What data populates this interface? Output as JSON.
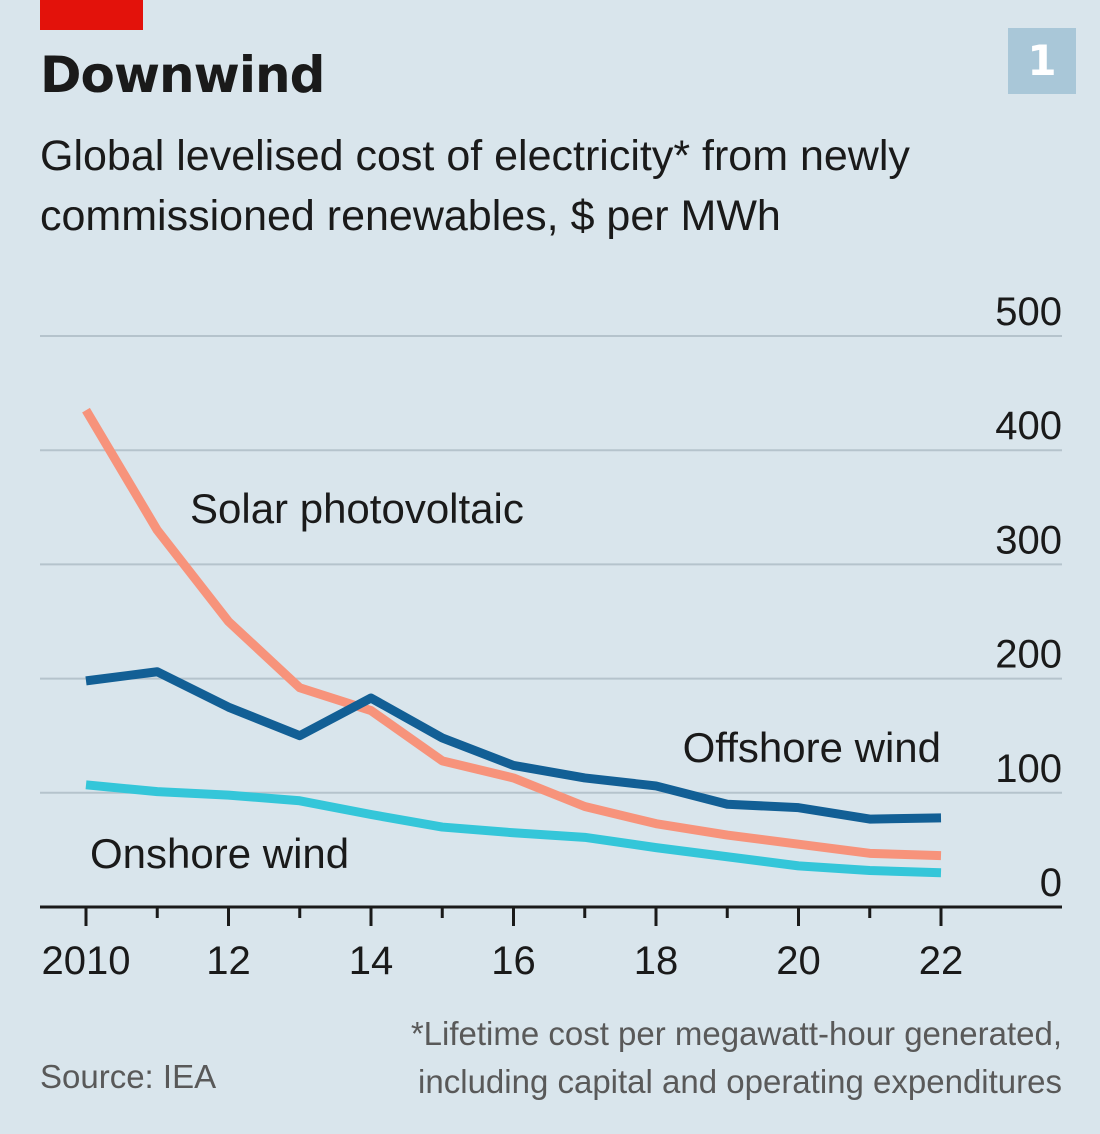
{
  "header": {
    "title": "Downwind",
    "subtitle": "Global levelised cost of electricity* from newly commissioned renewables, $ per MWh",
    "chart_number": "1"
  },
  "footer": {
    "footnote": "*Lifetime cost per megawatt-hour generated, including capital and operating expenditures",
    "source": "Source: IEA"
  },
  "colors": {
    "brand_red": "#e3120b",
    "background": "#d9e5ec",
    "solar": "#f7937b",
    "offshore": "#125f95",
    "onshore": "#34c6d9",
    "gridline": "#b5c3cc",
    "axis": "#1a1a1a",
    "badge": "#a9c7d8"
  },
  "chart_data": {
    "type": "line",
    "title": "Downwind",
    "subtitle": "Global levelised cost of electricity* from newly commissioned renewables, $ per MWh",
    "x": [
      2010,
      2011,
      2012,
      2013,
      2014,
      2015,
      2016,
      2017,
      2018,
      2019,
      2020,
      2021,
      2022
    ],
    "x_tick_values": [
      2010,
      2012,
      2014,
      2016,
      2018,
      2020,
      2022
    ],
    "x_tick_labels": [
      "2010",
      "12",
      "14",
      "16",
      "18",
      "20",
      "22"
    ],
    "ylim": [
      0,
      500
    ],
    "y_ticks": [
      0,
      100,
      200,
      300,
      400,
      500
    ],
    "grid": true,
    "series": [
      {
        "name": "Solar photovoltaic",
        "color": "#f7937b",
        "values": [
          435,
          330,
          250,
          192,
          172,
          128,
          113,
          88,
          73,
          63,
          55,
          47,
          45
        ]
      },
      {
        "name": "Offshore wind",
        "color": "#125f95",
        "values": [
          198,
          206,
          175,
          150,
          183,
          148,
          124,
          113,
          106,
          90,
          87,
          77,
          78
        ]
      },
      {
        "name": "Onshore wind",
        "color": "#34c6d9",
        "values": [
          107,
          101,
          98,
          93,
          81,
          70,
          65,
          61,
          52,
          44,
          36,
          32,
          30
        ]
      }
    ]
  }
}
